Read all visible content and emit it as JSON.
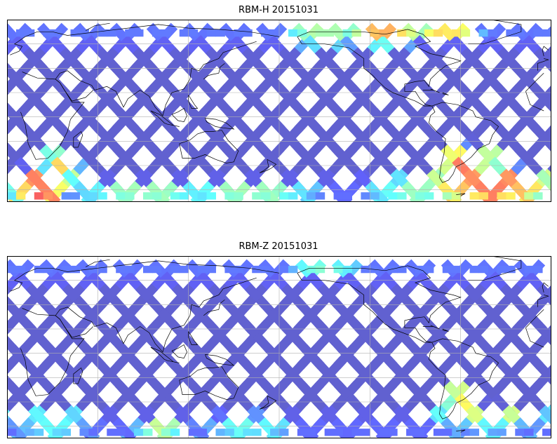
{
  "figure": {
    "panels": [
      {
        "title": "RBM-H 20151031",
        "colormap": "jet",
        "hot_regions": [
          {
            "lon": 20,
            "lat": -60,
            "level": 0.95,
            "rlon": 14,
            "rlat": 12
          },
          {
            "lon": 35,
            "lat": -45,
            "level": 0.7,
            "rlon": 10,
            "rlat": 14
          },
          {
            "lon": -40,
            "lat": -58,
            "level": 0.98,
            "rlon": 40,
            "rlat": 8
          },
          {
            "lon": -60,
            "lat": -45,
            "level": 0.85,
            "rlon": 12,
            "rlat": 16
          },
          {
            "lon": -45,
            "lat": -38,
            "level": 0.6,
            "rlon": 18,
            "rlat": 10
          },
          {
            "lon": -110,
            "lat": 68,
            "level": 0.75,
            "rlon": 22,
            "rlat": 10
          },
          {
            "lon": -70,
            "lat": 70,
            "level": 0.7,
            "rlon": 20,
            "rlat": 8
          },
          {
            "lon": -150,
            "lat": 65,
            "level": 0.55,
            "rlon": 25,
            "rlat": 8
          },
          {
            "lon": -90,
            "lat": -60,
            "level": 0.5,
            "rlon": 30,
            "rlat": 8
          },
          {
            "lon": 90,
            "lat": -62,
            "level": 0.5,
            "rlon": 40,
            "rlat": 6
          },
          {
            "lon": 160,
            "lat": -62,
            "level": 0.5,
            "rlon": 40,
            "rlat": 6
          }
        ]
      },
      {
        "title": "RBM-Z 20151031",
        "colormap": "jet",
        "hot_regions": [
          {
            "lon": -60,
            "lat": -40,
            "level": 0.7,
            "rlon": 10,
            "rlat": 10
          },
          {
            "lon": -40,
            "lat": -55,
            "level": 0.6,
            "rlon": 35,
            "rlat": 8
          },
          {
            "lon": 100,
            "lat": -62,
            "level": 0.55,
            "rlon": 15,
            "rlat": 5
          },
          {
            "lon": 160,
            "lat": -60,
            "level": 0.45,
            "rlon": 30,
            "rlat": 6
          },
          {
            "lon": -150,
            "lat": 70,
            "level": 0.45,
            "rlon": 20,
            "rlat": 8
          },
          {
            "lon": 30,
            "lat": -58,
            "level": 0.45,
            "rlon": 25,
            "rlat": 8
          }
        ]
      }
    ],
    "map": {
      "lon_range": [
        0,
        360
      ],
      "lat_range": [
        -70,
        80
      ],
      "gridlines": true,
      "grid_lon_step": 60,
      "grid_lat_step": 20,
      "swath_lat_range": [
        -68,
        72
      ]
    }
  }
}
